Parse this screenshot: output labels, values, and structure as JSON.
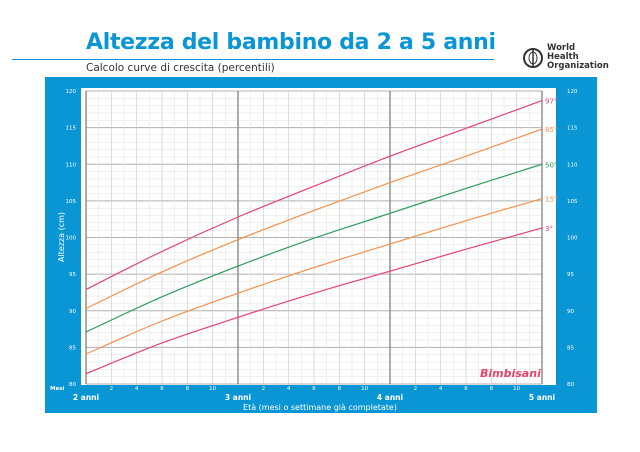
{
  "header": {
    "title": "Altezza del bambino da 2 a 5 anni",
    "subtitle": "Calcolo curve di crescita (percentili)",
    "org_name": "World Health Organization"
  },
  "brand": {
    "logo_text": "Bimbisani"
  },
  "colors": {
    "frame": "#0a96d4",
    "p3": "#e8436a",
    "p15": "#f5904a",
    "p50": "#2e9c5e",
    "p85": "#f5904a",
    "p97": "#e8436a",
    "grid": "#d0d0d0"
  },
  "chart_data": {
    "type": "line",
    "title": "Altezza del bambino da 2 a 5 anni",
    "xlabel": "Età (mesi o settimane già completate)",
    "ylabel": "Altezza (cm)",
    "x_unit_label": "Mesi",
    "xlim": [
      24,
      60
    ],
    "ylim": [
      80,
      120
    ],
    "grid": true,
    "y_ticks": [
      80,
      85,
      90,
      95,
      100,
      105,
      110,
      115,
      120
    ],
    "month_ticks": [
      "2",
      "4",
      "6",
      "8",
      "10"
    ],
    "year_labels": [
      "2 anni",
      "3 anni",
      "4 anni",
      "5 anni"
    ],
    "x": [
      24,
      30,
      36,
      42,
      48,
      54,
      60
    ],
    "series": [
      {
        "name": "97°",
        "key": "p97",
        "values": [
          92.9,
          98.1,
          102.8,
          107.0,
          111.1,
          114.9,
          118.7
        ]
      },
      {
        "name": "85°",
        "key": "p85",
        "values": [
          90.3,
          95.3,
          99.7,
          103.7,
          107.5,
          111.1,
          114.8
        ]
      },
      {
        "name": "50°",
        "key": "p50",
        "values": [
          87.1,
          91.9,
          96.1,
          99.9,
          103.3,
          106.7,
          110.0
        ]
      },
      {
        "name": "15°",
        "key": "p15",
        "values": [
          84.1,
          88.6,
          92.4,
          95.9,
          99.1,
          102.3,
          105.3
        ]
      },
      {
        "name": "3°",
        "key": "p3",
        "values": [
          81.4,
          85.6,
          89.1,
          92.4,
          95.4,
          98.4,
          101.3
        ]
      }
    ]
  }
}
